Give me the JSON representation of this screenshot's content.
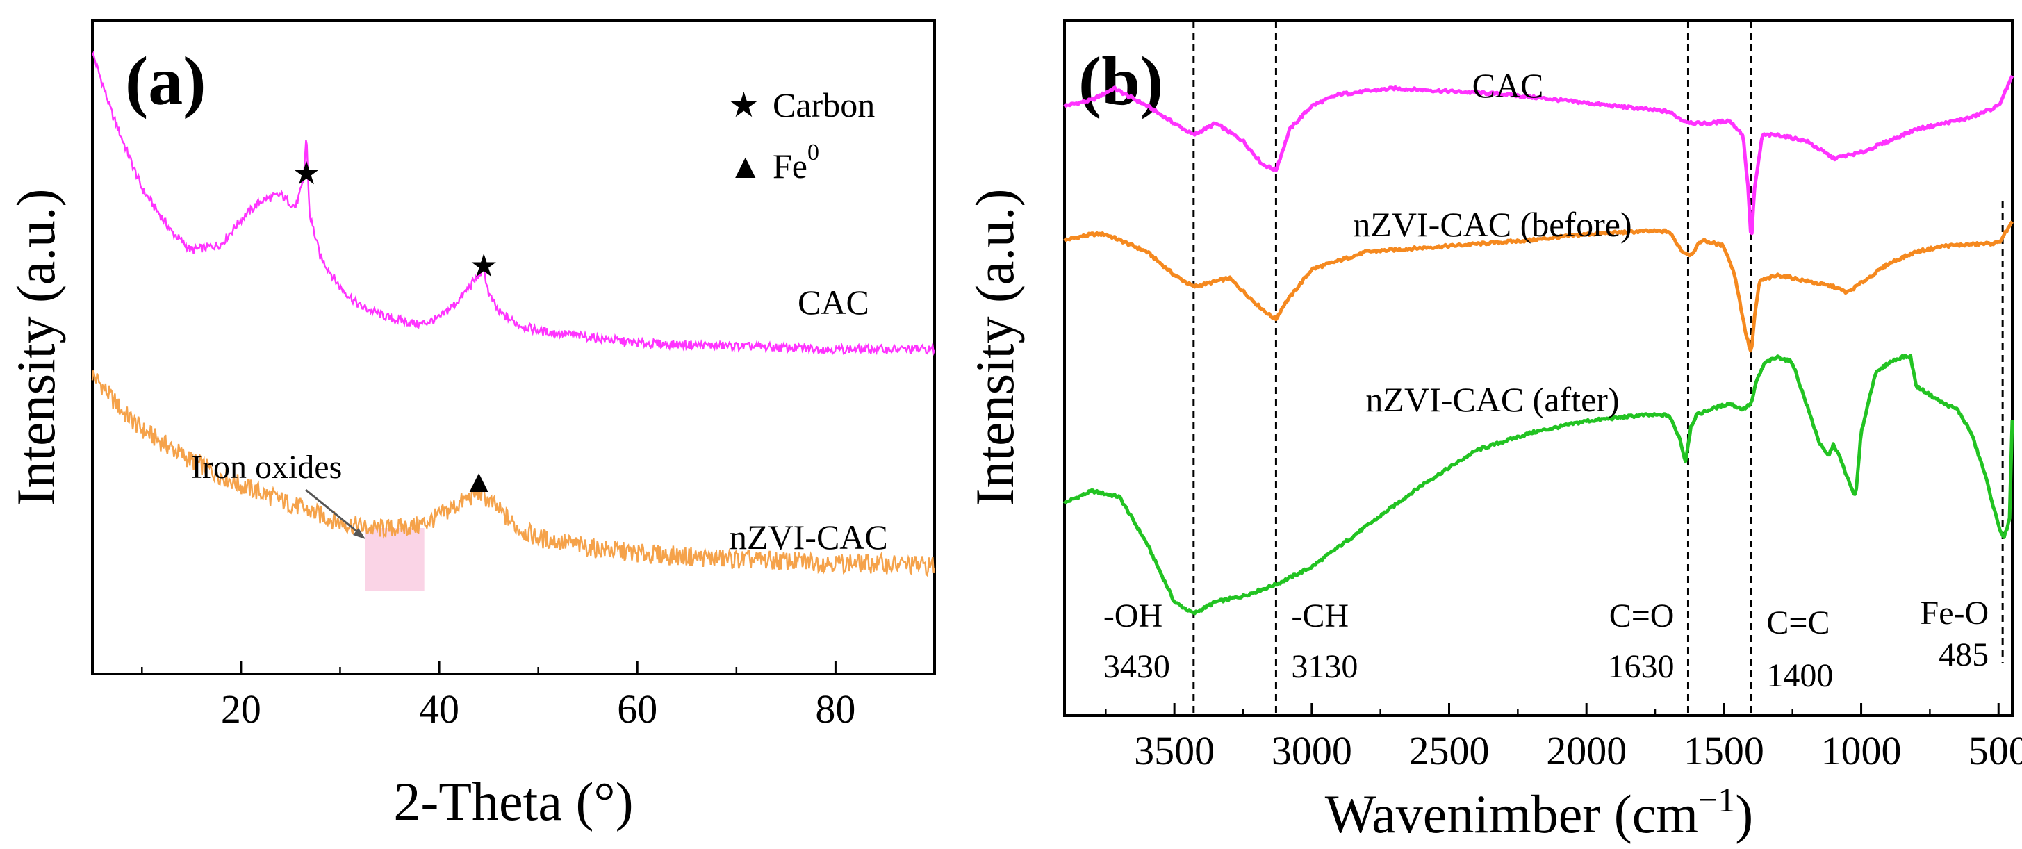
{
  "colors": {
    "cac": "#ff33ff",
    "before": "#f5891f",
    "after": "#22c322",
    "xrd_nzvi": "#f5a24a",
    "highlight": "#f7b7d6",
    "axis": "#000000"
  },
  "chart_data": [
    {
      "panel": "(a)",
      "type": "line",
      "xlabel": "2-Theta (°)",
      "ylabel": "Intensity (a.u.)",
      "xlim": [
        5,
        90
      ],
      "xticks": [
        20,
        40,
        60,
        80
      ],
      "xtick_labels": [
        "20",
        "40",
        "60",
        "80"
      ],
      "y_units": "arbitrary (relative, 0-100 scale)",
      "legend": [
        {
          "marker": "★",
          "label": "Carbon"
        },
        {
          "marker": "▲",
          "label": "Fe",
          "superscript": "0"
        }
      ],
      "series": [
        {
          "name": "CAC",
          "color": "#ff33ff",
          "x": [
            5,
            7,
            10,
            13,
            15,
            18,
            20,
            22,
            24,
            25.5,
            26.3,
            26.6,
            26.9,
            28,
            30,
            32,
            35,
            38,
            40,
            42,
            43.5,
            44.5,
            45,
            46,
            48,
            50,
            55,
            60,
            70,
            80,
            90
          ],
          "y": [
            96,
            86,
            74,
            67,
            64,
            65,
            69,
            72,
            73,
            71,
            75,
            83,
            70,
            63,
            58,
            55,
            53,
            52,
            53,
            56,
            59,
            61,
            57,
            54,
            52,
            51,
            50,
            49,
            48.5,
            48,
            48
          ]
        },
        {
          "name": "nZVI-CAC",
          "color": "#f5a24a",
          "x": [
            5,
            8,
            10,
            15,
            20,
            25,
            30,
            33,
            35,
            38,
            40,
            42,
            44,
            46,
            48,
            50,
            55,
            60,
            70,
            80,
            90
          ],
          "y": [
            44,
            38,
            35,
            30,
            26,
            23,
            20,
            19,
            19,
            19.5,
            21,
            23,
            25,
            22,
            19,
            17.5,
            16,
            15,
            14,
            13.5,
            13
          ]
        }
      ],
      "annotations": [
        {
          "text": "★",
          "x": 26.6
        },
        {
          "text": "★",
          "x": 44.5
        },
        {
          "text": "▲",
          "x": 44
        },
        {
          "text": "Iron oxides",
          "x_range": [
            32.5,
            38.5
          ]
        },
        {
          "text": "CAC",
          "series": "CAC"
        },
        {
          "text": "nZVI-CAC",
          "series": "nZVI-CAC"
        }
      ]
    },
    {
      "panel": "(b)",
      "type": "line",
      "xlabel": "Wavenimber (cm",
      "xlabel_superscript": "−1",
      "xlabel_suffix": ")",
      "ylabel": "Intensity (a.u.)",
      "xlim": [
        3900,
        450
      ],
      "x_reversed": true,
      "xticks": [
        3500,
        3000,
        2500,
        2000,
        1500,
        1000,
        500
      ],
      "xtick_labels": [
        "3500",
        "3000",
        "2500",
        "2000",
        "1500",
        "1000",
        "500"
      ],
      "y_units": "arbitrary (relative, 0-100 scale)",
      "series": [
        {
          "name": "CAC",
          "color": "#ff33ff",
          "x": [
            3900,
            3800,
            3720,
            3600,
            3500,
            3430,
            3350,
            3250,
            3180,
            3130,
            3080,
            3000,
            2900,
            2700,
            2500,
            2300,
            2100,
            1900,
            1700,
            1650,
            1600,
            1550,
            1480,
            1430,
            1410,
            1400,
            1390,
            1360,
            1300,
            1200,
            1100,
            1000,
            900,
            800,
            700,
            600,
            500,
            450
          ],
          "y": [
            89,
            90,
            92,
            89,
            86,
            84,
            86,
            83,
            79,
            78,
            85,
            89,
            91,
            92,
            91.5,
            91,
            90,
            89,
            88,
            86.5,
            86,
            86,
            86.5,
            84,
            74,
            65,
            74,
            84,
            84,
            83,
            80,
            81,
            83,
            85,
            86,
            87,
            89,
            94
          ]
        },
        {
          "name": "nZVI-CAC (before)",
          "color": "#f5891f",
          "x": [
            3900,
            3800,
            3750,
            3600,
            3500,
            3430,
            3300,
            3200,
            3150,
            3130,
            3100,
            3000,
            2800,
            2500,
            2200,
            2000,
            1800,
            1700,
            1650,
            1620,
            1580,
            1500,
            1460,
            1420,
            1400,
            1390,
            1370,
            1300,
            1200,
            1100,
            1050,
            900,
            800,
            700,
            500,
            450
          ],
          "y": [
            66,
            67,
            67,
            64,
            60,
            58,
            59.5,
            55,
            53,
            52.5,
            55,
            61,
            64,
            65,
            66,
            67,
            67.5,
            67.5,
            64,
            63.5,
            66,
            65,
            60,
            50,
            46.5,
            52,
            59,
            60,
            59,
            58,
            57,
            62,
            64,
            65,
            65.5,
            69
          ]
        },
        {
          "name": "nZVI-CAC (after)",
          "color": "#22c322",
          "x": [
            3900,
            3800,
            3700,
            3600,
            3550,
            3500,
            3430,
            3350,
            3250,
            3130,
            3000,
            2800,
            2600,
            2400,
            2200,
            2000,
            1800,
            1700,
            1660,
            1640,
            1620,
            1600,
            1550,
            1480,
            1430,
            1400,
            1380,
            1350,
            1300,
            1250,
            1200,
            1150,
            1120,
            1100,
            1080,
            1040,
            1020,
            1000,
            950,
            900,
            850,
            820,
            800,
            700,
            650,
            600,
            550,
            500,
            480,
            460,
            450
          ],
          "y": [
            21,
            23,
            22,
            14,
            9,
            4,
            2,
            4,
            5,
            7,
            10,
            17,
            24,
            30,
            33,
            35,
            36,
            36,
            32,
            28,
            34,
            36,
            37,
            38,
            37,
            38,
            42,
            45,
            46,
            45,
            38,
            31,
            29,
            31,
            29,
            24,
            22,
            33,
            43,
            45,
            46,
            46,
            41,
            38,
            37,
            33,
            26,
            17,
            15,
            18,
            35
          ]
        }
      ],
      "reference_lines": [
        {
          "label_top": "-OH",
          "label_bottom": "3430",
          "x": 3430
        },
        {
          "label_top": "-CH",
          "label_bottom": "3130",
          "x": 3130
        },
        {
          "label_top": "C=O",
          "label_bottom": "1630",
          "x": 1630
        },
        {
          "label_top": "C=C",
          "label_bottom": "1400",
          "x": 1400
        },
        {
          "label_top": "Fe-O",
          "label_bottom": "485",
          "x": 485
        }
      ],
      "series_labels": [
        "CAC",
        "nZVI-CAC (before)",
        "nZVI-CAC (after)"
      ]
    }
  ]
}
